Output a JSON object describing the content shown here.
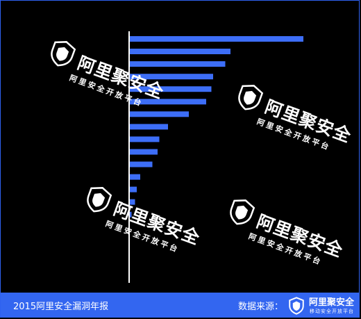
{
  "chart_data": {
    "type": "bar",
    "orientation": "horizontal",
    "categories": [
      "",
      "",
      "",
      "",
      "",
      "",
      "",
      "",
      "",
      "",
      "",
      "",
      "",
      "",
      ""
    ],
    "values": [
      100,
      58,
      55,
      48,
      47,
      44,
      34,
      22,
      17,
      16,
      13,
      6,
      4,
      3,
      1
    ],
    "xlim": [
      0,
      100
    ],
    "grid": false,
    "bar_color": "#3d6ef7",
    "axis_color": "#ffffff"
  },
  "watermark": {
    "brand": "阿里聚安全",
    "tagline": "阿里安全开放平台",
    "color": "#ffffff",
    "icon": "shield-icon"
  },
  "footer": {
    "title": "2015阿里安全漏洞年报",
    "source_label": "数据来源：",
    "brand": "阿里聚安全",
    "tagline": "移动安全开放平台",
    "background": "#3366f0"
  }
}
